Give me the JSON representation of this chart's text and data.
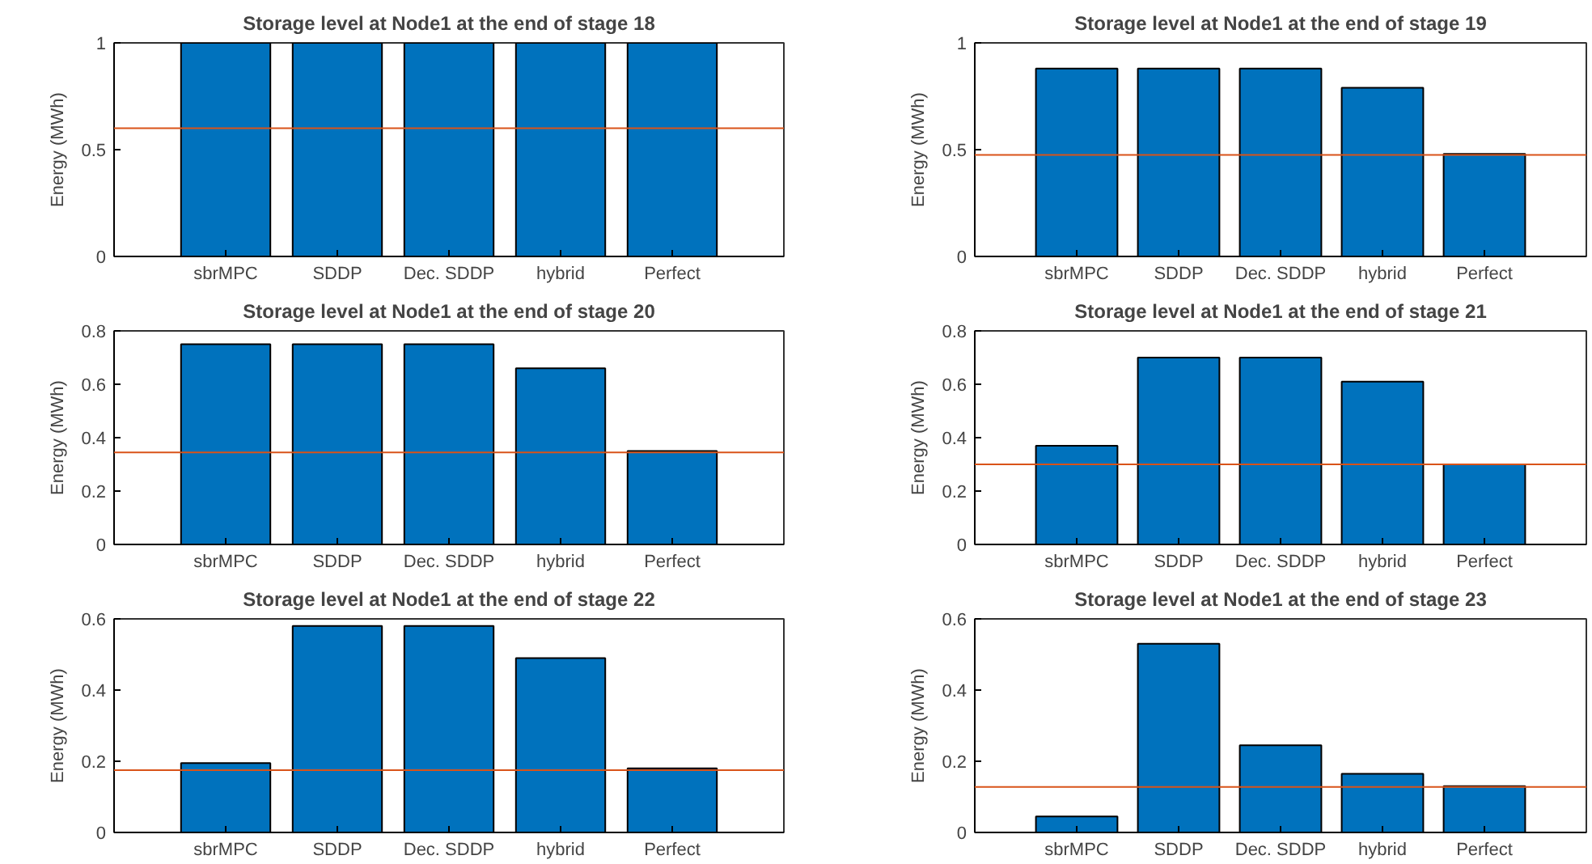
{
  "chart_data": [
    {
      "type": "bar",
      "title": "Storage level at Node1 at the end of stage 18",
      "ylabel": "Energy (MWh)",
      "categories": [
        "sbrMPC",
        "SDDP",
        "Dec. SDDP",
        "hybrid",
        "Perfect"
      ],
      "values": [
        1,
        1,
        1,
        1,
        1
      ],
      "color": "#0072bd",
      "ylim": [
        0,
        1
      ],
      "yticks": [
        0,
        0.5,
        1
      ],
      "ref_lines": [
        {
          "axis": "y",
          "value": 0.6,
          "color": "#d95319"
        }
      ]
    },
    {
      "type": "bar",
      "title": "Storage level at Node1 at the end of stage 19",
      "ylabel": "Energy (MWh)",
      "categories": [
        "sbrMPC",
        "SDDP",
        "Dec. SDDP",
        "hybrid",
        "Perfect"
      ],
      "values": [
        0.88,
        0.88,
        0.88,
        0.79,
        0.48
      ],
      "color": "#0072bd",
      "ylim": [
        0,
        1
      ],
      "yticks": [
        0,
        0.5,
        1
      ],
      "ref_lines": [
        {
          "axis": "y",
          "value": 0.475,
          "color": "#d95319"
        }
      ]
    },
    {
      "type": "bar",
      "title": "Storage level at Node1 at the end of stage 20",
      "ylabel": "Energy (MWh)",
      "categories": [
        "sbrMPC",
        "SDDP",
        "Dec. SDDP",
        "hybrid",
        "Perfect"
      ],
      "values": [
        0.75,
        0.75,
        0.75,
        0.66,
        0.35
      ],
      "color": "#0072bd",
      "ylim": [
        0,
        0.8
      ],
      "yticks": [
        0,
        0.2,
        0.4,
        0.6,
        0.8
      ],
      "ref_lines": [
        {
          "axis": "y",
          "value": 0.345,
          "color": "#d95319"
        }
      ]
    },
    {
      "type": "bar",
      "title": "Storage level at Node1 at the end of stage 21",
      "ylabel": "Energy (MWh)",
      "categories": [
        "sbrMPC",
        "SDDP",
        "Dec. SDDP",
        "hybrid",
        "Perfect"
      ],
      "values": [
        0.37,
        0.7,
        0.7,
        0.61,
        0.3
      ],
      "color": "#0072bd",
      "ylim": [
        0,
        0.8
      ],
      "yticks": [
        0,
        0.2,
        0.4,
        0.6,
        0.8
      ],
      "ref_lines": [
        {
          "axis": "y",
          "value": 0.3,
          "color": "#d95319"
        }
      ]
    },
    {
      "type": "bar",
      "title": "Storage level at Node1 at the end of stage 22",
      "ylabel": "Energy (MWh)",
      "categories": [
        "sbrMPC",
        "SDDP",
        "Dec. SDDP",
        "hybrid",
        "Perfect"
      ],
      "values": [
        0.195,
        0.58,
        0.58,
        0.49,
        0.18
      ],
      "color": "#0072bd",
      "ylim": [
        0,
        0.6
      ],
      "yticks": [
        0,
        0.2,
        0.4,
        0.6
      ],
      "ref_lines": [
        {
          "axis": "y",
          "value": 0.175,
          "color": "#d95319"
        }
      ]
    },
    {
      "type": "bar",
      "title": "Storage level at Node1 at the end of stage 23",
      "ylabel": "Energy (MWh)",
      "categories": [
        "sbrMPC",
        "SDDP",
        "Dec. SDDP",
        "hybrid",
        "Perfect"
      ],
      "values": [
        0.045,
        0.53,
        0.245,
        0.165,
        0.13
      ],
      "color": "#0072bd",
      "ylim": [
        0,
        0.6
      ],
      "yticks": [
        0,
        0.2,
        0.4,
        0.6
      ],
      "ref_lines": [
        {
          "axis": "y",
          "value": 0.128,
          "color": "#d95319"
        }
      ]
    }
  ]
}
